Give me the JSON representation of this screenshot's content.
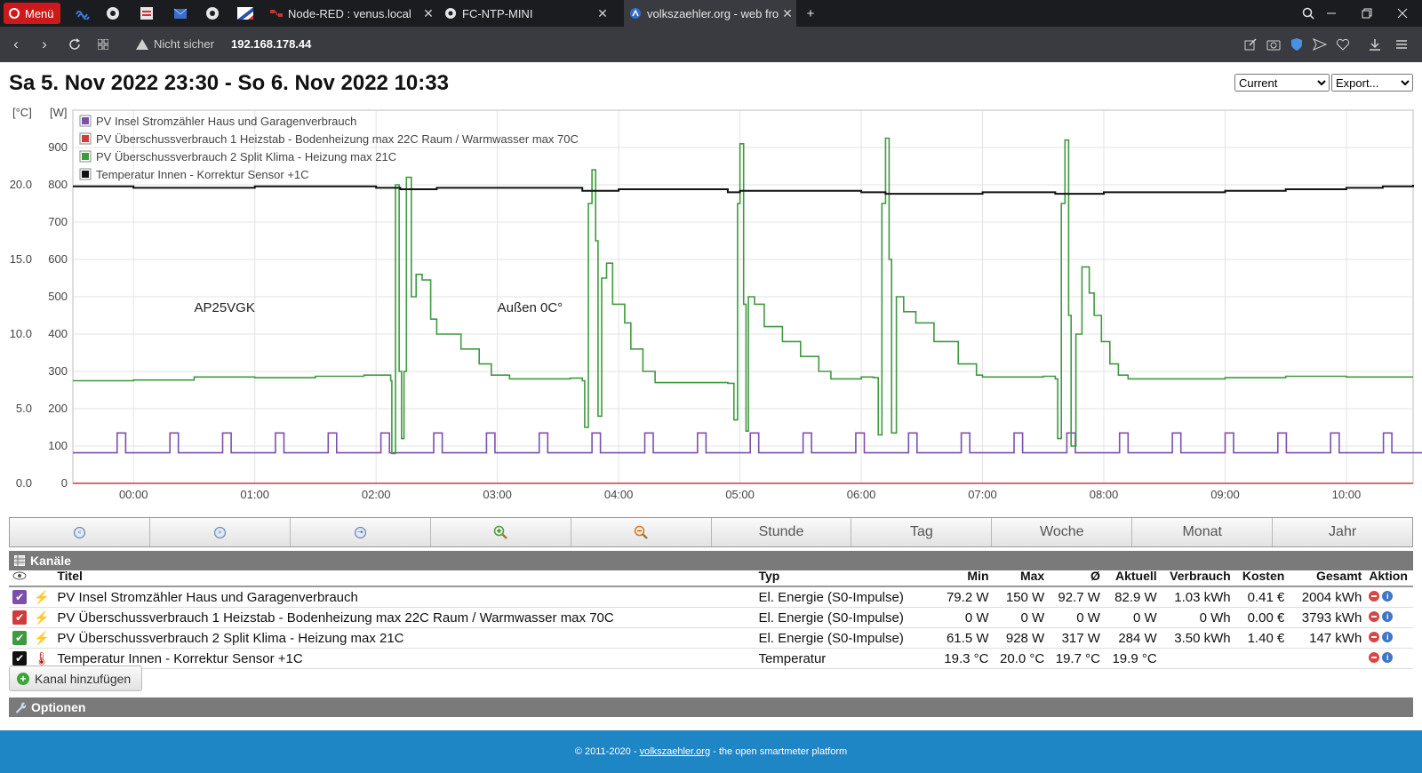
{
  "browser": {
    "menu_label": "Menü",
    "tabs": [
      {
        "label": "Node-RED : venus.local",
        "close": "✕"
      },
      {
        "label": "FC-NTP-MINI",
        "close": "✕"
      },
      {
        "label": "volkszaehler.org - web fron",
        "close": "✕"
      }
    ],
    "insecure_label": "Nicht sicher",
    "url": "192.168.178.44"
  },
  "page": {
    "title": "Sa 5. Nov 2022 23:30 - So 6. Nov 2022 10:33",
    "select_mode": "Current",
    "select_export": "Export..."
  },
  "chart_data": {
    "type": "line",
    "y_left_unit": "[°C]",
    "y_right_unit": "[W]",
    "y_temp_ticks": [
      "0.0",
      "5.0",
      "10.0",
      "15.0",
      "20.0"
    ],
    "y_watt_ticks": [
      "0",
      "100",
      "200",
      "300",
      "400",
      "500",
      "600",
      "700",
      "800",
      "900"
    ],
    "y_watt_range": [
      0,
      1000
    ],
    "y_temp_range": [
      0,
      25
    ],
    "x_tick_labels": [
      "00:00",
      "01:00",
      "02:00",
      "03:00",
      "04:00",
      "05:00",
      "06:00",
      "07:00",
      "08:00",
      "09:00",
      "10:00"
    ],
    "x_range_hours": [
      -0.5,
      10.55
    ],
    "annotations": [
      {
        "text": "AP25VGK",
        "x": 0.5,
        "y": 450
      },
      {
        "text": "Außen 0C°",
        "x": 3.0,
        "y": 450
      }
    ],
    "series": [
      {
        "name": "PV Insel Stromzähler Haus und Garagenverbrauch",
        "color": "#7d4fad",
        "axis": "watt",
        "cycle": {
          "period_h": 0.435,
          "start_h": -0.5,
          "base": 82,
          "peak": 135,
          "on_h": 0.07
        }
      },
      {
        "name": "PV Überschussverbrauch 1 Heizstab - Bodenheizung max 22C Raum / Warmwasser max 70C",
        "color": "#d23b3b",
        "axis": "watt",
        "points": [
          [
            -0.5,
            0
          ],
          [
            10.55,
            0
          ]
        ]
      },
      {
        "name": "PV Überschussverbrauch 2 Split Klima - Heizung max 21C",
        "color": "#3f9a3f",
        "axis": "watt",
        "points": [
          [
            -0.5,
            275
          ],
          [
            0,
            277
          ],
          [
            0.5,
            285
          ],
          [
            1.0,
            283
          ],
          [
            1.5,
            287
          ],
          [
            1.9,
            290
          ],
          [
            2.12,
            275
          ],
          [
            2.13,
            80
          ],
          [
            2.16,
            800
          ],
          [
            2.19,
            300
          ],
          [
            2.21,
            120
          ],
          [
            2.23,
            300
          ],
          [
            2.25,
            820
          ],
          [
            2.29,
            500
          ],
          [
            2.33,
            560
          ],
          [
            2.38,
            545
          ],
          [
            2.45,
            440
          ],
          [
            2.5,
            400
          ],
          [
            2.7,
            360
          ],
          [
            2.85,
            320
          ],
          [
            2.95,
            290
          ],
          [
            3.1,
            280
          ],
          [
            3.6,
            282
          ],
          [
            3.7,
            275
          ],
          [
            3.72,
            150
          ],
          [
            3.75,
            750
          ],
          [
            3.78,
            840
          ],
          [
            3.81,
            650
          ],
          [
            3.83,
            180
          ],
          [
            3.86,
            550
          ],
          [
            3.9,
            590
          ],
          [
            3.95,
            480
          ],
          [
            4.05,
            430
          ],
          [
            4.1,
            360
          ],
          [
            4.2,
            300
          ],
          [
            4.3,
            270
          ],
          [
            4.9,
            268
          ],
          [
            4.95,
            170
          ],
          [
            4.98,
            750
          ],
          [
            5.0,
            910
          ],
          [
            5.03,
            480
          ],
          [
            5.05,
            140
          ],
          [
            5.07,
            500
          ],
          [
            5.12,
            480
          ],
          [
            5.2,
            420
          ],
          [
            5.35,
            380
          ],
          [
            5.5,
            340
          ],
          [
            5.65,
            300
          ],
          [
            5.75,
            280
          ],
          [
            6.0,
            285
          ],
          [
            6.1,
            283
          ],
          [
            6.14,
            130
          ],
          [
            6.17,
            750
          ],
          [
            6.2,
            925
          ],
          [
            6.23,
            600
          ],
          [
            6.25,
            135
          ],
          [
            6.29,
            500
          ],
          [
            6.35,
            460
          ],
          [
            6.45,
            430
          ],
          [
            6.6,
            380
          ],
          [
            6.8,
            320
          ],
          [
            6.95,
            290
          ],
          [
            7.0,
            285
          ],
          [
            7.5,
            287
          ],
          [
            7.6,
            280
          ],
          [
            7.62,
            120
          ],
          [
            7.65,
            750
          ],
          [
            7.68,
            920
          ],
          [
            7.71,
            450
          ],
          [
            7.73,
            100
          ],
          [
            7.77,
            400
          ],
          [
            7.82,
            580
          ],
          [
            7.88,
            510
          ],
          [
            7.92,
            450
          ],
          [
            7.98,
            380
          ],
          [
            8.05,
            320
          ],
          [
            8.12,
            290
          ],
          [
            8.2,
            280
          ],
          [
            9.0,
            283
          ],
          [
            9.5,
            287
          ],
          [
            10.0,
            285
          ],
          [
            10.55,
            285
          ]
        ]
      },
      {
        "name": "Temperatur Innen - Korrektur Sensor +1C",
        "color": "#111111",
        "axis": "temp",
        "points": [
          [
            -0.5,
            19.9
          ],
          [
            0,
            19.8
          ],
          [
            1,
            19.9
          ],
          [
            2,
            19.8
          ],
          [
            2.2,
            19.7
          ],
          [
            2.5,
            19.8
          ],
          [
            3,
            19.8
          ],
          [
            3.7,
            19.6
          ],
          [
            4,
            19.7
          ],
          [
            4.9,
            19.5
          ],
          [
            5,
            19.6
          ],
          [
            6,
            19.5
          ],
          [
            6.2,
            19.4
          ],
          [
            7,
            19.5
          ],
          [
            7.6,
            19.4
          ],
          [
            7.7,
            19.4
          ],
          [
            8,
            19.5
          ],
          [
            9,
            19.6
          ],
          [
            9.5,
            19.7
          ],
          [
            10,
            19.8
          ],
          [
            10.3,
            19.9
          ],
          [
            10.55,
            20.0
          ]
        ]
      }
    ]
  },
  "toolbar": {
    "buttons": [
      "«",
      "»",
      "⇥",
      "+",
      "−"
    ],
    "stunde": "Stunde",
    "tag": "Tag",
    "woche": "Woche",
    "monat": "Monat",
    "jahr": "Jahr"
  },
  "channels": {
    "section_title": "Kanäle",
    "headers": {
      "titel": "Titel",
      "typ": "Typ",
      "min": "Min",
      "max": "Max",
      "avg": "Ø",
      "aktuell": "Aktuell",
      "verbrauch": "Verbrauch",
      "kosten": "Kosten",
      "gesamt": "Gesamt",
      "aktion": "Aktion"
    },
    "rows": [
      {
        "title": "PV Insel Stromzähler Haus und Garagenverbrauch",
        "typ": "El. Energie (S0-Impulse)",
        "min": "79.2 W",
        "max": "150 W",
        "avg": "92.7 W",
        "aktuell": "82.9 W",
        "verbrauch": "1.03 kWh",
        "kosten": "0.41 €",
        "gesamt": "2004 kWh",
        "color": "#7d4fad"
      },
      {
        "title": "PV Überschussverbrauch 1 Heizstab - Bodenheizung max 22C Raum / Warmwasser max 70C",
        "typ": "El. Energie (S0-Impulse)",
        "min": "0 W",
        "max": "0 W",
        "avg": "0 W",
        "aktuell": "0 W",
        "verbrauch": "0 Wh",
        "kosten": "0.00 €",
        "gesamt": "3793 kWh",
        "color": "#d23b3b"
      },
      {
        "title": "PV Überschussverbrauch 2 Split Klima - Heizung max 21C",
        "typ": "El. Energie (S0-Impulse)",
        "min": "61.5 W",
        "max": "928 W",
        "avg": "317 W",
        "aktuell": "284 W",
        "verbrauch": "3.50 kWh",
        "kosten": "1.40 €",
        "gesamt": "147 kWh",
        "color": "#3f9a3f"
      },
      {
        "title": "Temperatur Innen - Korrektur Sensor +1C",
        "typ": "Temperatur",
        "min": "19.3 °C",
        "max": "20.0 °C",
        "avg": "19.7 °C",
        "aktuell": "19.9 °C",
        "verbrauch": "",
        "kosten": "",
        "gesamt": "",
        "color": "#111111"
      }
    ],
    "add_label": "Kanal hinzufügen"
  },
  "options": {
    "section_title": "Optionen"
  },
  "footer": {
    "prefix": "© 2011-2020 - ",
    "link": "volkszaehler.org",
    "suffix": " - the open smartmeter platform"
  }
}
